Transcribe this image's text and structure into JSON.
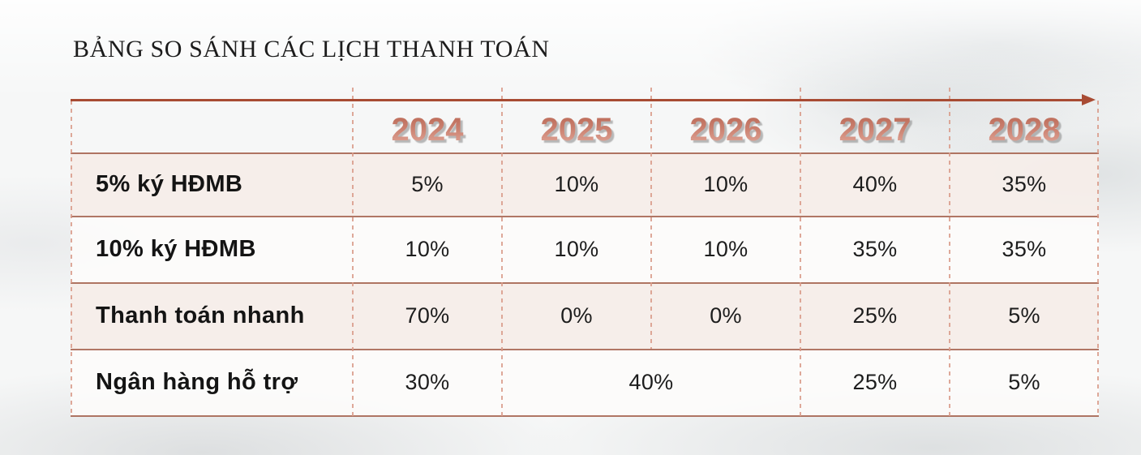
{
  "title": "BẢNG SO SÁNH CÁC LỊCH THANH TOÁN",
  "timeline": {
    "years": [
      "2024",
      "2025",
      "2026",
      "2027",
      "2028"
    ]
  },
  "table": {
    "rows": [
      {
        "label": "5% ký HĐMB",
        "values": [
          "5%",
          "10%",
          "10%",
          "40%",
          "35%"
        ]
      },
      {
        "label": "10% ký HĐMB",
        "values": [
          "10%",
          "10%",
          "10%",
          "35%",
          "35%"
        ]
      },
      {
        "label": "Thanh toán nhanh",
        "values": [
          "70%",
          "0%",
          "0%",
          "25%",
          "5%"
        ]
      },
      {
        "label": "Ngân hàng hỗ trợ",
        "values": [
          "30%",
          "40%",
          "25%",
          "5%"
        ],
        "merged_cell": {
          "value": "40%",
          "spans_years": [
            "2025",
            "2026"
          ]
        }
      }
    ]
  },
  "chart_data": {
    "type": "table",
    "title": "BẢNG SO SÁNH CÁC LỊCH THANH TOÁN",
    "columns": [
      "",
      "2024",
      "2025",
      "2026",
      "2027",
      "2028"
    ],
    "rows": [
      [
        "5% ký HĐMB",
        "5%",
        "10%",
        "10%",
        "40%",
        "35%"
      ],
      [
        "10% ký HĐMB",
        "10%",
        "10%",
        "10%",
        "35%",
        "35%"
      ],
      [
        "Thanh toán nhanh",
        "70%",
        "0%",
        "0%",
        "25%",
        "5%"
      ],
      [
        "Ngân hàng hỗ trợ",
        "30%",
        "40% (spans 2025–2026)",
        "",
        "25%",
        "5%"
      ]
    ]
  },
  "colors": {
    "accent_arrow": "#a84b33",
    "solid_grid_line": "#9d5540",
    "dashed_grid_line": "#d99a88",
    "row_alt_background": "#f6ede9",
    "year_gradient_top": "#b4604c",
    "year_gradient_bottom": "#e7b3a6",
    "text": "#1a1a1a"
  }
}
